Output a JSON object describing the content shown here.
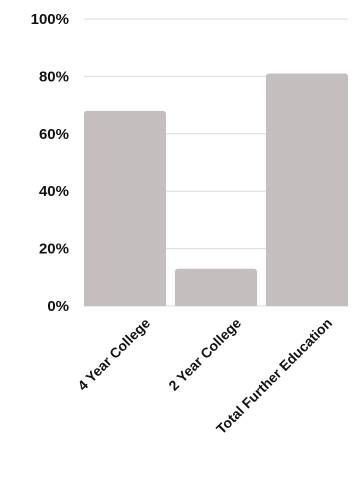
{
  "chart_data": {
    "type": "bar",
    "categories": [
      "4 Year College",
      "2 Year College",
      "Total Further Education"
    ],
    "values": [
      68,
      13,
      81
    ],
    "title": "",
    "xlabel": "",
    "ylabel": "",
    "ylim": [
      0,
      100
    ],
    "yticks": [
      "0%",
      "20%",
      "40%",
      "60%",
      "80%",
      "100%"
    ],
    "grid": true,
    "legend": "none",
    "bar_color": "#c4bebe"
  }
}
